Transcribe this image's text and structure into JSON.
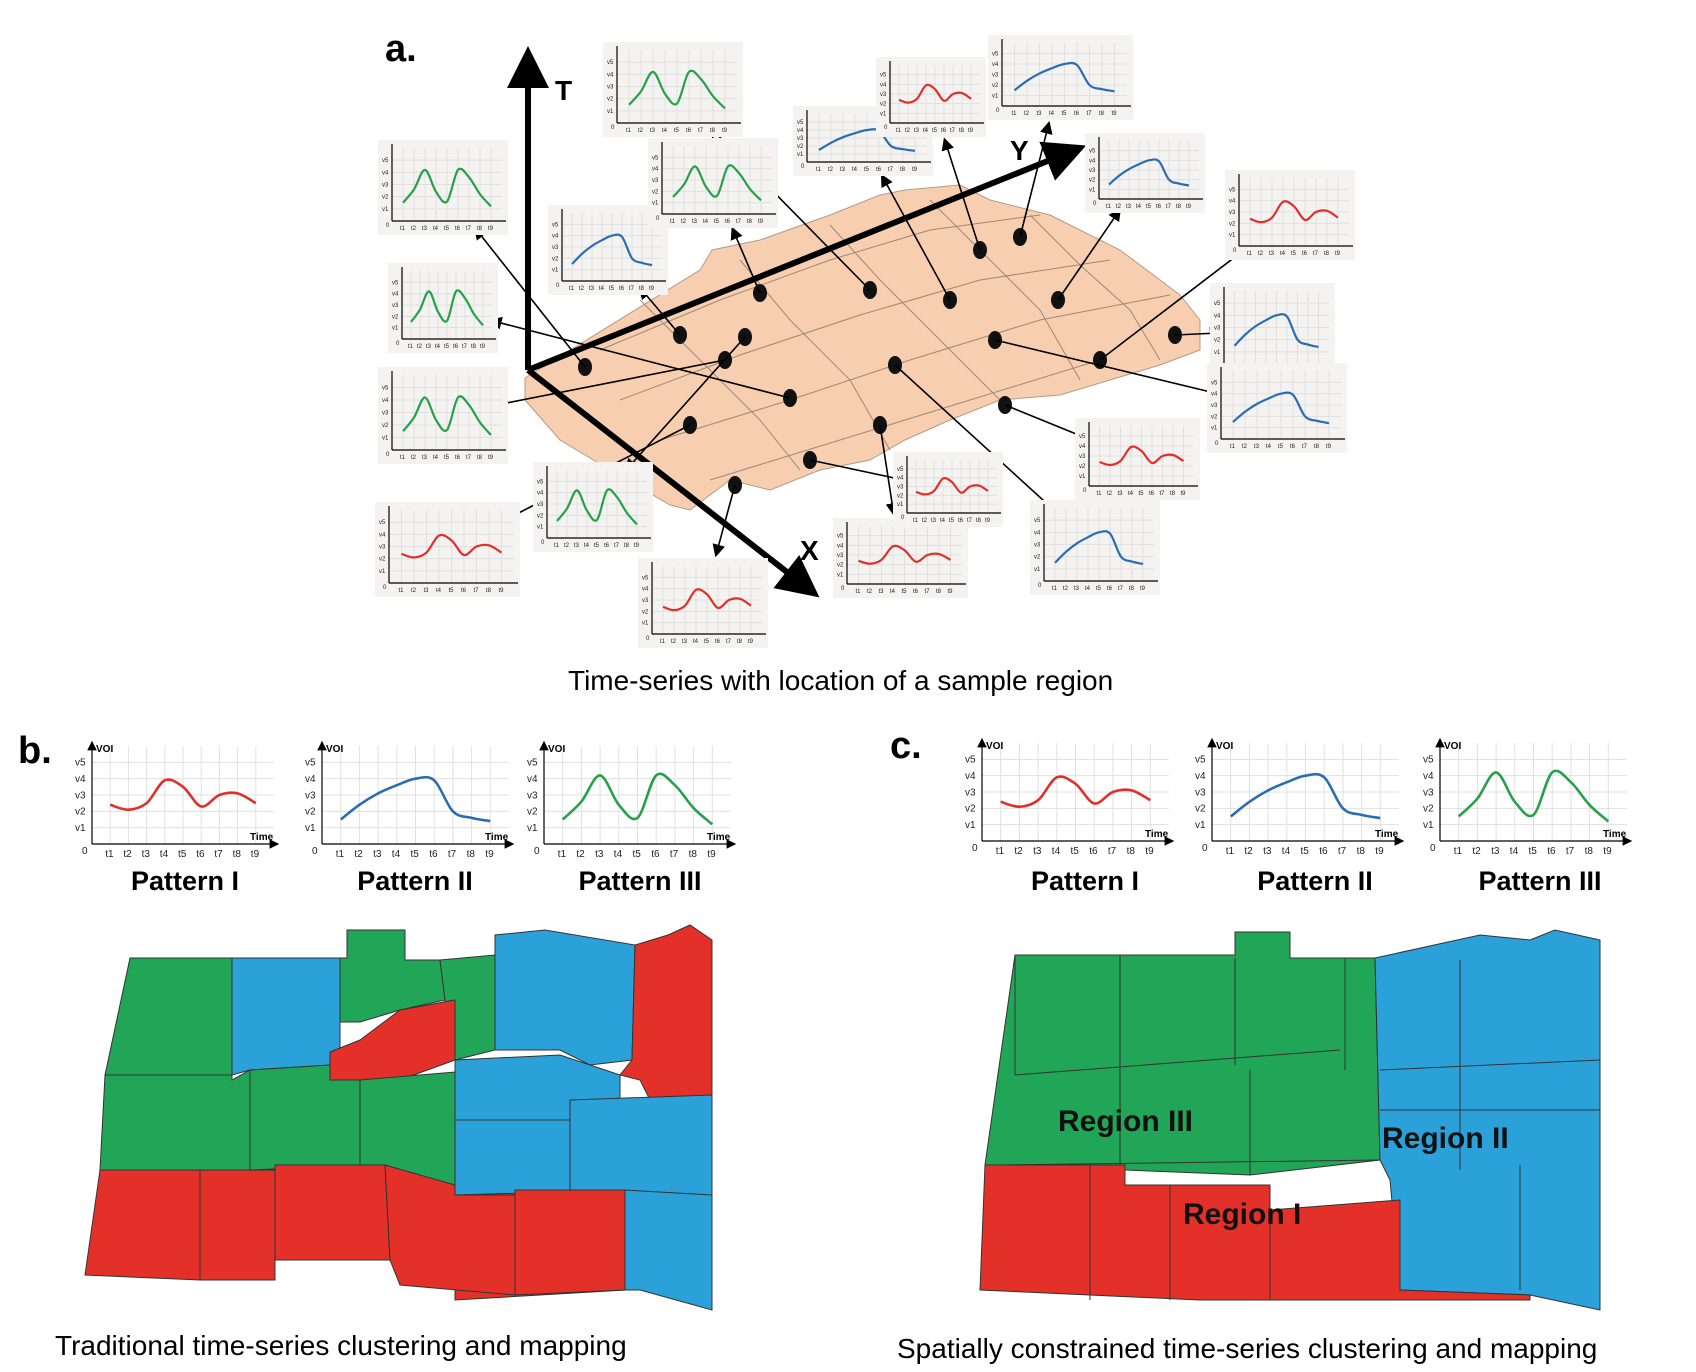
{
  "panel_a": {
    "label": "a.",
    "axis_t": "T",
    "axis_x": "X",
    "axis_y": "Y",
    "caption": "Time-series with location of a sample region"
  },
  "panel_b": {
    "label": "b.",
    "caption": "Traditional time-series clustering and mapping",
    "patterns": [
      "Pattern I",
      "Pattern II",
      "Pattern III"
    ]
  },
  "panel_c": {
    "label": "c.",
    "caption": "Spatially constrained time-series clustering and mapping",
    "patterns": [
      "Pattern I",
      "Pattern II",
      "Pattern III"
    ],
    "regions": [
      "Region III",
      "Region II",
      "Region I"
    ]
  },
  "mini_chart": {
    "y_ticks": [
      "v1",
      "v2",
      "v3",
      "v4",
      "v5"
    ],
    "x_ticks": [
      "t1",
      "t2",
      "t3",
      "t4",
      "t5",
      "t6",
      "t7",
      "t8",
      "t9"
    ],
    "origin": "0",
    "y_label": "VOI",
    "x_label": "Time"
  },
  "colors": {
    "pattern_i": "#e0302a",
    "pattern_ii": "#2a6db4",
    "pattern_iii": "#27a04a",
    "region_red": "#e3312a",
    "region_blue": "#2ba1d9",
    "region_green": "#21a557",
    "map_base": "#f7cfb0"
  },
  "series": {
    "pattern_i": [
      2.4,
      2.1,
      2.5,
      3.9,
      3.5,
      2.3,
      3.0,
      3.1,
      2.5
    ],
    "pattern_ii": [
      1.5,
      2.4,
      3.1,
      3.6,
      4.0,
      3.9,
      2.0,
      1.6,
      1.4
    ],
    "pattern_iii": [
      1.5,
      2.6,
      4.2,
      2.4,
      1.6,
      4.2,
      3.6,
      2.2,
      1.2
    ]
  }
}
